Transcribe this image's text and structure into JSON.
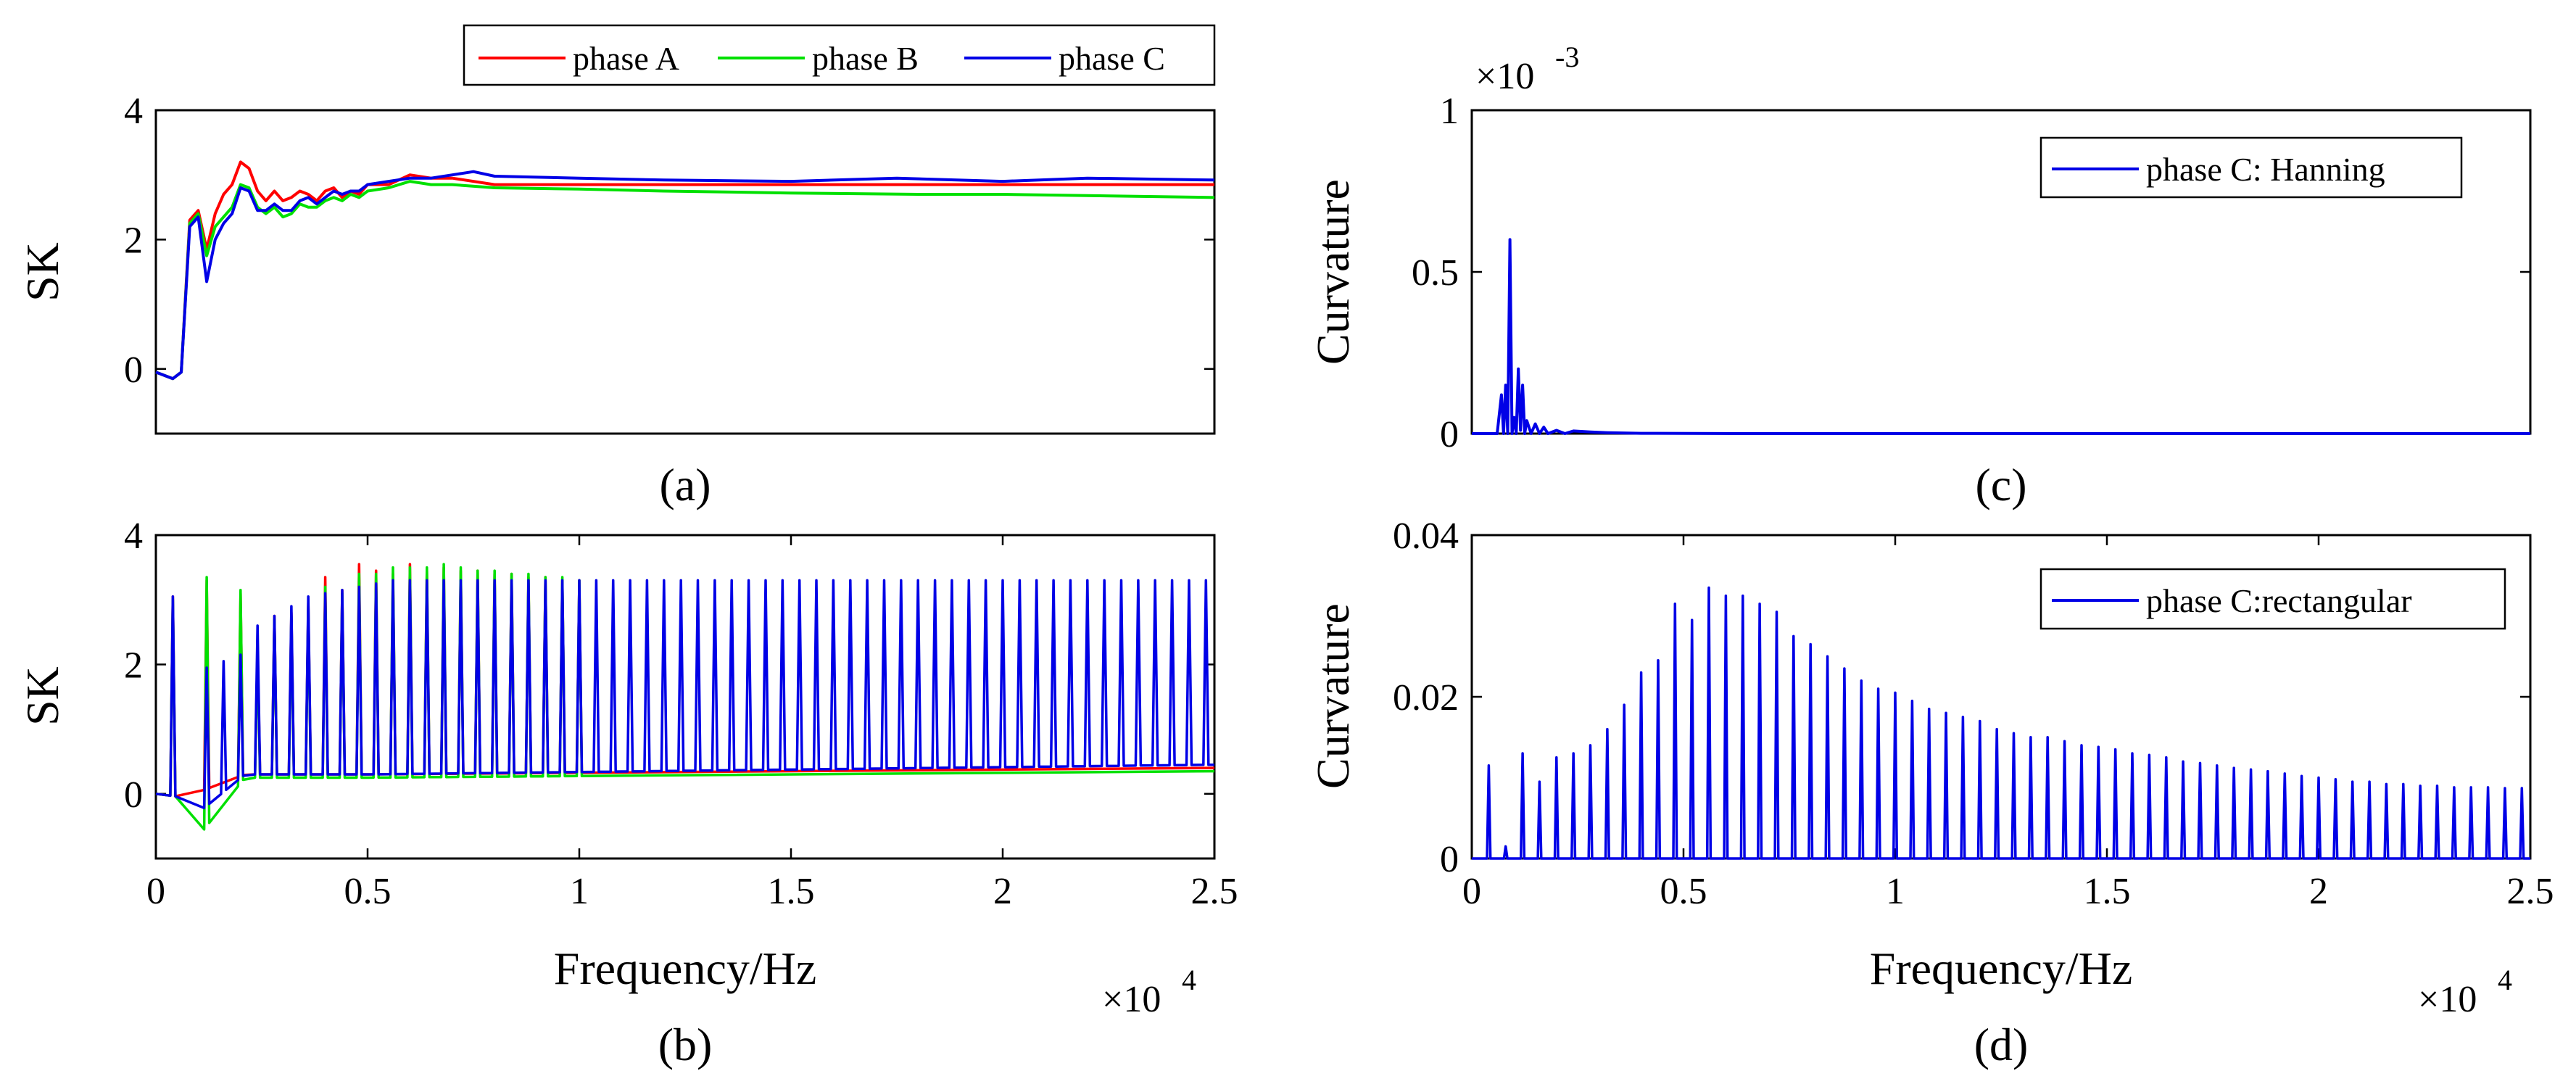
{
  "chart_data": [
    {
      "id": "a",
      "type": "line",
      "caption": "(a)",
      "ylabel": "SK",
      "xlabel": "",
      "xlim": [
        0,
        25000
      ],
      "ylim": [
        -1,
        4
      ],
      "xticks": [],
      "yticks": [
        0,
        2,
        4
      ],
      "ytick_labels": [
        "0",
        "2",
        "4"
      ],
      "legend": {
        "position": "top",
        "outside": true
      },
      "series": [
        {
          "name": "phase A",
          "color": "#ff0000",
          "x": [
            0,
            200,
            400,
            600,
            800,
            1000,
            1200,
            1400,
            1600,
            1800,
            2000,
            2200,
            2400,
            2600,
            2800,
            3000,
            3200,
            3400,
            3600,
            3800,
            4000,
            4200,
            4400,
            4600,
            4800,
            5000,
            5500,
            6000,
            6500,
            7000,
            8000,
            10000,
            12000,
            15000,
            18000,
            20000,
            22000,
            25000
          ],
          "y": [
            -0.05,
            -0.1,
            -0.15,
            -0.05,
            2.3,
            2.45,
            1.85,
            2.4,
            2.7,
            2.85,
            3.2,
            3.1,
            2.75,
            2.6,
            2.75,
            2.6,
            2.65,
            2.75,
            2.7,
            2.6,
            2.75,
            2.8,
            2.65,
            2.75,
            2.7,
            2.85,
            2.85,
            3.0,
            2.95,
            2.95,
            2.85,
            2.85,
            2.85,
            2.85,
            2.85,
            2.85,
            2.85,
            2.85
          ]
        },
        {
          "name": "phase B",
          "color": "#00e000",
          "x": [
            0,
            200,
            400,
            600,
            800,
            1000,
            1200,
            1400,
            1600,
            1800,
            2000,
            2200,
            2400,
            2600,
            2800,
            3000,
            3200,
            3400,
            3600,
            3800,
            4000,
            4200,
            4400,
            4600,
            4800,
            5000,
            5500,
            6000,
            6500,
            7000,
            8000,
            10000,
            12000,
            15000,
            18000,
            20000,
            22000,
            25000
          ],
          "y": [
            -0.05,
            -0.1,
            -0.15,
            -0.05,
            2.25,
            2.4,
            1.75,
            2.2,
            2.35,
            2.5,
            2.85,
            2.8,
            2.5,
            2.4,
            2.5,
            2.35,
            2.4,
            2.55,
            2.5,
            2.5,
            2.6,
            2.65,
            2.6,
            2.7,
            2.65,
            2.75,
            2.8,
            2.9,
            2.85,
            2.85,
            2.8,
            2.78,
            2.75,
            2.72,
            2.7,
            2.7,
            2.68,
            2.65
          ]
        },
        {
          "name": "phase C",
          "color": "#0000e6",
          "x": [
            0,
            200,
            400,
            600,
            800,
            1000,
            1200,
            1400,
            1600,
            1800,
            2000,
            2200,
            2400,
            2600,
            2800,
            3000,
            3200,
            3400,
            3600,
            3800,
            4000,
            4200,
            4400,
            4600,
            4800,
            5000,
            5500,
            6000,
            6500,
            7000,
            7500,
            8000,
            10000,
            12000,
            15000,
            17500,
            20000,
            22000,
            25000
          ],
          "y": [
            -0.05,
            -0.1,
            -0.15,
            -0.05,
            2.2,
            2.35,
            1.35,
            2.0,
            2.25,
            2.4,
            2.8,
            2.75,
            2.45,
            2.45,
            2.55,
            2.45,
            2.45,
            2.6,
            2.65,
            2.55,
            2.65,
            2.75,
            2.7,
            2.75,
            2.75,
            2.85,
            2.9,
            2.95,
            2.95,
            3.0,
            3.05,
            2.98,
            2.95,
            2.92,
            2.9,
            2.95,
            2.9,
            2.95,
            2.92
          ]
        }
      ]
    },
    {
      "id": "b",
      "type": "line",
      "caption": "(b)",
      "ylabel": "SK",
      "xlabel": "Frequency/Hz",
      "xlim": [
        0,
        25000
      ],
      "ylim": [
        -1,
        4
      ],
      "xticks": [
        0,
        5000,
        10000,
        15000,
        20000,
        25000
      ],
      "xtick_labels": [
        "0",
        "0.5",
        "1",
        "1.5",
        "2",
        "2.5"
      ],
      "yticks": [
        0,
        2,
        4
      ],
      "ytick_labels": [
        "0",
        "2",
        "4"
      ],
      "x_multiplier": {
        "base": "×10",
        "exponent": "4"
      },
      "peak_spacing_hz": 400,
      "series": [
        {
          "name": "phase A",
          "color": "#ff0000",
          "baseline": [
            0,
            0.3,
            0.4
          ],
          "peaks_x": [
            400,
            1200,
            2000,
            2400,
            2800,
            3200,
            3600,
            4000,
            4400,
            4800,
            5200,
            5600,
            6000,
            6400,
            6800,
            7200,
            7600,
            8000,
            8400,
            8800,
            9200,
            9600,
            10000
          ],
          "peaks_y": [
            3.05,
            3.3,
            3.1,
            2.3,
            2.75,
            2.8,
            2.95,
            3.35,
            3.15,
            3.55,
            3.45,
            3.4,
            3.55,
            3.45,
            3.5,
            3.45,
            3.45,
            3.4,
            3.4,
            3.35,
            3.35,
            3.3,
            3.3
          ]
        },
        {
          "name": "phase B",
          "color": "#00e000",
          "baseline": [
            -0.75,
            0.25,
            0.35
          ],
          "peaks_x": [
            400,
            1200,
            2000,
            2400,
            2800,
            3200,
            3600,
            4000,
            4400,
            4800,
            5200,
            5600,
            6000,
            6400,
            6800,
            7200,
            7600,
            8000,
            8400,
            8800,
            9200,
            9600,
            10000
          ],
          "peaks_y": [
            3.0,
            3.35,
            3.15,
            2.25,
            2.7,
            2.75,
            2.9,
            3.2,
            3.1,
            3.4,
            3.4,
            3.5,
            3.5,
            3.5,
            3.55,
            3.5,
            3.45,
            3.45,
            3.4,
            3.4,
            3.35,
            3.35,
            3.3
          ]
        },
        {
          "name": "phase C",
          "color": "#0000e6",
          "baseline": [
            -0.35,
            0.3,
            0.45
          ],
          "peaks_x_range": [
            400,
            24800
          ],
          "peaks_y_first": [
            3.05,
            1.95,
            2.05,
            2.15,
            2.6,
            2.75,
            2.9,
            3.05,
            3.1,
            3.15,
            3.2,
            3.25
          ],
          "peaks_y_plateau": 3.3
        }
      ]
    },
    {
      "id": "c",
      "type": "line",
      "caption": "(c)",
      "ylabel": "Curvature",
      "xlabel": "",
      "xlim": [
        0,
        25000
      ],
      "ylim": [
        0,
        0.001
      ],
      "xticks": [],
      "yticks": [
        0,
        0.0005,
        0.001
      ],
      "ytick_labels": [
        "0",
        "0.5",
        "1"
      ],
      "y_multiplier": {
        "base": "×10",
        "exponent": "-3"
      },
      "legend": {
        "position": "top-right"
      },
      "series": [
        {
          "name": "phase C: Hanning",
          "color": "#0000e6",
          "x": [
            0,
            600,
            700,
            750,
            800,
            850,
            900,
            950,
            1000,
            1050,
            1100,
            1150,
            1200,
            1250,
            1300,
            1400,
            1500,
            1600,
            1700,
            1800,
            2000,
            2200,
            2400,
            2800,
            3200,
            4000,
            7000,
            25000
          ],
          "y": [
            0,
            0,
            0.00012,
            0.0,
            0.00015,
            0.0,
            0.0006,
            0.0,
            5e-05,
            0.0,
            0.0002,
            1e-05,
            0.00015,
            0.0,
            4e-05,
            0.0,
            3e-05,
            0.0,
            2e-05,
            0.0,
            1e-05,
            0.0,
            8e-06,
            5e-06,
            3e-06,
            1e-06,
            0,
            0
          ]
        }
      ]
    },
    {
      "id": "d",
      "type": "line",
      "caption": "(d)",
      "ylabel": "Curvature",
      "xlabel": "Frequency/Hz",
      "xlim": [
        0,
        25000
      ],
      "ylim": [
        0,
        0.04
      ],
      "xticks": [
        0,
        5000,
        10000,
        15000,
        20000,
        25000
      ],
      "xtick_labels": [
        "0",
        "0.5",
        "1",
        "1.5",
        "2",
        "2.5"
      ],
      "yticks": [
        0,
        0.02,
        0.04
      ],
      "ytick_labels": [
        "0",
        "0.02",
        "0.04"
      ],
      "x_multiplier": {
        "base": "×10",
        "exponent": "4"
      },
      "legend": {
        "position": "top-right"
      },
      "series": [
        {
          "name": "phase C:rectangular",
          "color": "#0000e6",
          "peaks_x_range": [
            400,
            24800
          ],
          "peak_spacing_hz": 400,
          "peaks_y": [
            0.0115,
            0.0015,
            0.013,
            0.0095,
            0.0125,
            0.013,
            0.014,
            0.016,
            0.019,
            0.023,
            0.0245,
            0.0315,
            0.0295,
            0.0335,
            0.0325,
            0.0325,
            0.0315,
            0.0305,
            0.0275,
            0.0265,
            0.025,
            0.0235,
            0.022,
            0.021,
            0.0205,
            0.0195,
            0.0185,
            0.018,
            0.0175,
            0.017,
            0.016,
            0.0155,
            0.015,
            0.015,
            0.0145,
            0.014,
            0.0138,
            0.0135,
            0.013,
            0.0128,
            0.0125,
            0.012,
            0.0118,
            0.0115,
            0.0112,
            0.011,
            0.0108,
            0.0105,
            0.0102,
            0.01,
            0.0098,
            0.0095,
            0.0095,
            0.0092,
            0.0092,
            0.009,
            0.009,
            0.0088,
            0.0088,
            0.0088,
            0.0087,
            0.0087
          ]
        }
      ]
    }
  ]
}
